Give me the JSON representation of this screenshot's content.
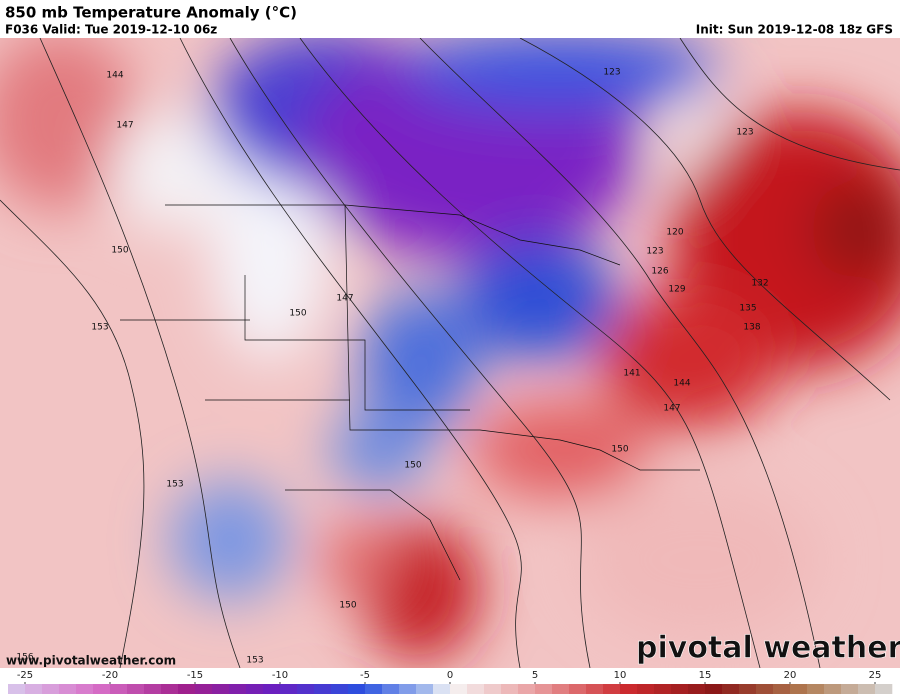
{
  "header": {
    "title": "850 mb Temperature Anomaly (°C)",
    "valid": "F036 Valid: Tue 2019-12-10 06z",
    "init": "Init: Sun 2019-12-08 18z GFS"
  },
  "contour_labels": [
    "144",
    "147",
    "150",
    "153",
    "153",
    "150",
    "153",
    "156",
    "147",
    "150",
    "150",
    "123",
    "123",
    "120",
    "123",
    "126",
    "129",
    "132",
    "135",
    "138",
    "141",
    "144",
    "147",
    "150"
  ],
  "colorbar": {
    "range": [
      -26,
      26
    ],
    "ticks": [
      -25,
      -20,
      -15,
      -10,
      -5,
      0,
      5,
      10,
      15,
      20,
      25
    ]
  },
  "footer": {
    "website": "www.pivotalweather.com",
    "logo": "pivotal weather"
  }
}
